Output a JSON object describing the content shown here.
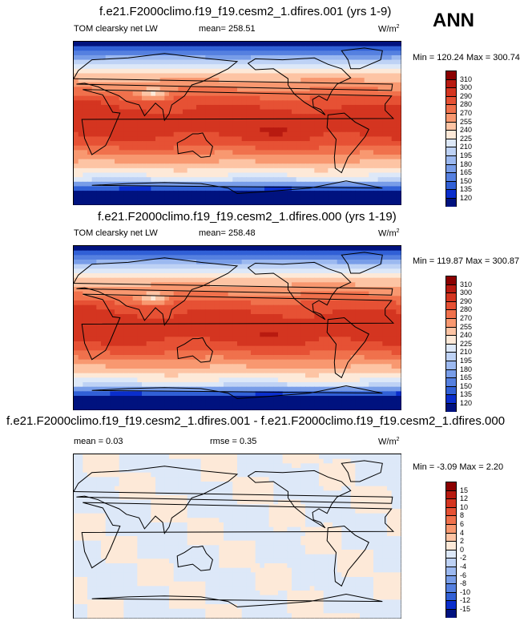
{
  "season": "ANN",
  "units_base": "W/m",
  "units_exp": "2",
  "chart_data": [
    {
      "type": "heatmap",
      "title": "f.e21.F2000climo.f19_f19.cesm2_1.dfires.001 (yrs 1-9)",
      "variable": "TOM clearsky net LW",
      "mean_text": "mean= 258.51",
      "minmax_text": "Min = 120.24 Max = 300.74",
      "min": 120.24,
      "max": 300.74,
      "mean": 258.51,
      "levels": [
        "310",
        "300",
        "290",
        "280",
        "270",
        "255",
        "240",
        "225",
        "210",
        "195",
        "180",
        "165",
        "150",
        "135",
        "120"
      ],
      "colors": [
        "#8b0000",
        "#b81a10",
        "#d43520",
        "#e65134",
        "#f0714c",
        "#f89870",
        "#fdc4a4",
        "#fde9d8",
        "#dde8f8",
        "#bed2f5",
        "#9cb9f0",
        "#789de8",
        "#5580e0",
        "#3160d6",
        "#0a2ecc",
        "#00127f"
      ]
    },
    {
      "type": "heatmap",
      "title": "f.e21.F2000climo.f19_f19.cesm2_1.dfires.000 (yrs 1-19)",
      "variable": "TOM clearsky net LW",
      "mean_text": "mean= 258.48",
      "minmax_text": "Min = 119.87 Max = 300.87",
      "min": 119.87,
      "max": 300.87,
      "mean": 258.48,
      "levels": [
        "310",
        "300",
        "290",
        "280",
        "270",
        "255",
        "240",
        "225",
        "210",
        "195",
        "180",
        "165",
        "150",
        "135",
        "120"
      ],
      "colors": [
        "#8b0000",
        "#b81a10",
        "#d43520",
        "#e65134",
        "#f0714c",
        "#f89870",
        "#fdc4a4",
        "#fde9d8",
        "#dde8f8",
        "#bed2f5",
        "#9cb9f0",
        "#789de8",
        "#5580e0",
        "#3160d6",
        "#0a2ecc",
        "#00127f"
      ]
    },
    {
      "type": "heatmap",
      "title": "f.e21.F2000climo.f19_f19.cesm2_1.dfires.001 - f.e21.F2000climo.f19_f19.cesm2_1.dfires.000",
      "mean_text": "mean =   0.03",
      "rmse_text": "rmse =   0.35",
      "minmax_text": "Min =  -3.09 Max =   2.20",
      "min": -3.09,
      "max": 2.2,
      "mean": 0.03,
      "rmse": 0.35,
      "levels": [
        "15",
        "12",
        "10",
        "8",
        "6",
        "4",
        "2",
        "0",
        "-2",
        "-4",
        "-6",
        "-8",
        "-10",
        "-12",
        "-15"
      ],
      "colors": [
        "#8b0000",
        "#b81a10",
        "#d43520",
        "#e65134",
        "#f0714c",
        "#f89870",
        "#fdc4a4",
        "#fde9d8",
        "#dde8f8",
        "#bed2f5",
        "#9cb9f0",
        "#789de8",
        "#5580e0",
        "#3160d6",
        "#0a2ecc",
        "#00127f"
      ]
    }
  ]
}
